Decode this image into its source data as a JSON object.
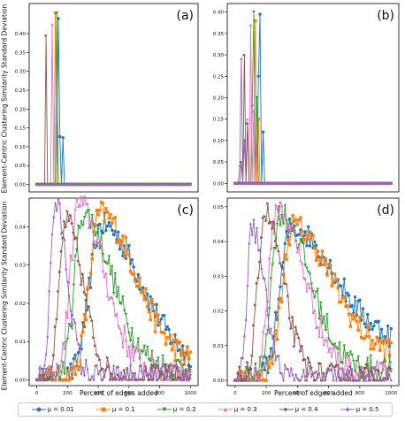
{
  "ylabels": [
    "Element-Centric Clustering Similarity Standard Deviation",
    "Element-Centric Clustering Similarity Standard Deviation"
  ],
  "xlabel": "Percent of edges added",
  "legend": [
    {
      "label": "μ = 0.01",
      "color": "#1f77b4",
      "marker": "circle"
    },
    {
      "label": "μ = 0.1",
      "color": "#ff7f0e",
      "marker": "square"
    },
    {
      "label": "μ = 0.2",
      "color": "#2ca02c",
      "marker": "triangle-down"
    },
    {
      "label": "μ = 0.3",
      "color": "#e377c2",
      "marker": "triangle-up"
    },
    {
      "label": "μ = 0.4",
      "color": "#8c564b",
      "marker": "triangle-right"
    },
    {
      "label": "μ = 0.5",
      "color": "#9467bd",
      "marker": "diamond"
    }
  ],
  "chart_data": [
    {
      "type": "line",
      "panel": "(a)",
      "xlim": [
        -50,
        1050
      ],
      "ylim": [
        -0.02,
        0.48
      ],
      "yticks": [
        0.0,
        0.05,
        0.1,
        0.15,
        0.2,
        0.25,
        0.3,
        0.35,
        0.4
      ],
      "xticks": [],
      "series": [
        {
          "color": "#1f77b4",
          "marker": "circle",
          "peak_x": 140,
          "peak_y": 0.44,
          "extra": [
            [
              150,
              0.127
            ],
            [
              170,
              0.124
            ]
          ],
          "zero_from": 190
        },
        {
          "color": "#ff7f0e",
          "marker": "square",
          "peak_x": 120,
          "peak_y": 0.455,
          "extra": [],
          "zero_from": 140
        },
        {
          "color": "#2ca02c",
          "marker": "triangle-down",
          "peak_x": 130,
          "peak_y": 0.455,
          "extra": [],
          "zero_from": 150
        },
        {
          "color": "#e377c2",
          "marker": "triangle-up",
          "peak_x": 100,
          "peak_y": 0.425,
          "extra": [],
          "zero_from": 120
        },
        {
          "color": "#8c564b",
          "marker": "triangle-right",
          "peak_x": 60,
          "peak_y": 0.395,
          "extra": [],
          "zero_from": 80
        },
        {
          "color": "#9467bd",
          "marker": "diamond",
          "peak_x": 0,
          "peak_y": 0.0,
          "extra": [],
          "zero_from": 0
        }
      ]
    },
    {
      "type": "line",
      "panel": "(b)",
      "xlim": [
        -50,
        1050
      ],
      "ylim": [
        -0.02,
        0.42
      ],
      "yticks": [
        0.0,
        0.05,
        0.1,
        0.15,
        0.2,
        0.25,
        0.3,
        0.35,
        0.4
      ],
      "xticks": [],
      "series": [
        {
          "color": "#1f77b4",
          "marker": "circle",
          "peak_x": 160,
          "peak_y": 0.395,
          "extra": [
            [
              180,
              0.12
            ],
            [
              150,
              0.25
            ]
          ],
          "zero_from": 200
        },
        {
          "color": "#ff7f0e",
          "marker": "square",
          "peak_x": 130,
          "peak_y": 0.38,
          "extra": [
            [
              150,
              0.15
            ]
          ],
          "zero_from": 170
        },
        {
          "color": "#2ca02c",
          "marker": "triangle-down",
          "peak_x": 120,
          "peak_y": 0.4,
          "extra": [
            [
              140,
              0.2
            ],
            [
              110,
              0.18
            ]
          ],
          "zero_from": 160
        },
        {
          "color": "#e377c2",
          "marker": "triangle-up",
          "peak_x": 100,
          "peak_y": 0.37,
          "extra": [
            [
              80,
              0.15
            ],
            [
              120,
              0.17
            ]
          ],
          "zero_from": 140
        },
        {
          "color": "#8c564b",
          "marker": "triangle-right",
          "peak_x": 60,
          "peak_y": 0.3,
          "extra": [
            [
              40,
              0.05
            ],
            [
              80,
              0.14
            ]
          ],
          "zero_from": 110
        },
        {
          "color": "#9467bd",
          "marker": "diamond",
          "peak_x": 40,
          "peak_y": 0.29,
          "extra": [
            [
              30,
              0.04
            ],
            [
              60,
              0.1
            ]
          ],
          "zero_from": 80
        }
      ]
    },
    {
      "type": "line",
      "panel": "(c)",
      "xlim": [
        -50,
        1050
      ],
      "ylim": [
        -0.0015,
        0.0475
      ],
      "yticks": [
        0.0,
        0.01,
        0.02,
        0.03,
        0.04
      ],
      "xticks": [
        0,
        200,
        400,
        600,
        800,
        1000
      ],
      "series": [
        {
          "color": "#1f77b4",
          "marker": "circle",
          "peak": 420,
          "height": 0.0405,
          "rise": 110,
          "fall": 390,
          "tail": 0.004
        },
        {
          "color": "#ff7f0e",
          "marker": "square",
          "peak": 410,
          "height": 0.0435,
          "rise": 95,
          "fall": 360,
          "tail": 0.004
        },
        {
          "color": "#2ca02c",
          "marker": "triangle-down",
          "peak": 300,
          "height": 0.0435,
          "rise": 80,
          "fall": 290,
          "tail": 0.003
        },
        {
          "color": "#e377c2",
          "marker": "triangle-up",
          "peak": 270,
          "height": 0.046,
          "rise": 75,
          "fall": 260,
          "tail": 0.002
        },
        {
          "color": "#8c564b",
          "marker": "triangle-right",
          "peak": 190,
          "height": 0.0415,
          "rise": 60,
          "fall": 170,
          "tail": 0.0008
        },
        {
          "color": "#9467bd",
          "marker": "diamond",
          "peak": 120,
          "height": 0.046,
          "rise": 45,
          "fall": 120,
          "tail": 0.0005
        }
      ]
    },
    {
      "type": "line",
      "panel": "(d)",
      "xlim": [
        -50,
        1050
      ],
      "ylim": [
        -0.0015,
        0.0525
      ],
      "yticks": [
        0.0,
        0.01,
        0.02,
        0.03,
        0.04,
        0.05
      ],
      "xticks": [
        0,
        200,
        400,
        600,
        800,
        1000
      ],
      "series": [
        {
          "color": "#1f77b4",
          "marker": "circle",
          "peak": 360,
          "height": 0.044,
          "rise": 100,
          "fall": 420,
          "tail": 0.011
        },
        {
          "color": "#ff7f0e",
          "marker": "square",
          "peak": 370,
          "height": 0.0445,
          "rise": 95,
          "fall": 380,
          "tail": 0.007
        },
        {
          "color": "#2ca02c",
          "marker": "triangle-down",
          "peak": 290,
          "height": 0.048,
          "rise": 80,
          "fall": 290,
          "tail": 0.003
        },
        {
          "color": "#e377c2",
          "marker": "triangle-up",
          "peak": 270,
          "height": 0.0495,
          "rise": 75,
          "fall": 270,
          "tail": 0.002
        },
        {
          "color": "#8c564b",
          "marker": "triangle-right",
          "peak": 190,
          "height": 0.0485,
          "rise": 60,
          "fall": 180,
          "tail": 0.001
        },
        {
          "color": "#9467bd",
          "marker": "diamond",
          "peak": 110,
          "height": 0.0445,
          "rise": 45,
          "fall": 120,
          "tail": 0.0005
        }
      ]
    }
  ]
}
